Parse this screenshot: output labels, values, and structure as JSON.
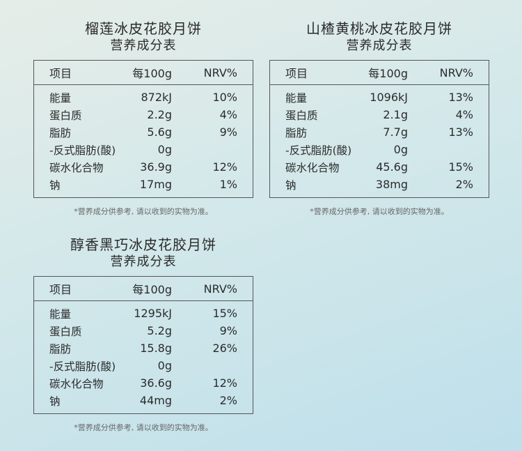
{
  "headers": {
    "item": "项目",
    "per100g": "每100g",
    "nrv": "NRV%"
  },
  "note": "*营养成分供参考, 请以收到的实物为准。",
  "products": [
    {
      "title": "榴莲冰皮花胶月饼",
      "subtitle": "营养成分表",
      "rows": [
        {
          "name": "能量",
          "value": "872kJ",
          "nrv": "10%"
        },
        {
          "name": "蛋白质",
          "value": "2.2g",
          "nrv": "4%"
        },
        {
          "name": "脂肪",
          "value": "5.6g",
          "nrv": "9%"
        },
        {
          "name": "-反式脂肪(酸)",
          "value": "0g",
          "nrv": ""
        },
        {
          "name": "碳水化合物",
          "value": "36.9g",
          "nrv": "12%"
        },
        {
          "name": "钠",
          "value": "17mg",
          "nrv": "1%"
        }
      ]
    },
    {
      "title": "山楂黄桃冰皮花胶月饼",
      "subtitle": "营养成分表",
      "rows": [
        {
          "name": "能量",
          "value": "1096kJ",
          "nrv": "13%"
        },
        {
          "name": "蛋白质",
          "value": "2.1g",
          "nrv": "4%"
        },
        {
          "name": "脂肪",
          "value": "7.7g",
          "nrv": "13%"
        },
        {
          "name": "-反式脂肪(酸)",
          "value": "0g",
          "nrv": ""
        },
        {
          "name": "碳水化合物",
          "value": "45.6g",
          "nrv": "15%"
        },
        {
          "name": "钠",
          "value": "38mg",
          "nrv": "2%"
        }
      ]
    },
    {
      "title": "醇香黑巧冰皮花胶月饼",
      "subtitle": "营养成分表",
      "rows": [
        {
          "name": "能量",
          "value": "1295kJ",
          "nrv": "15%"
        },
        {
          "name": "蛋白质",
          "value": "5.2g",
          "nrv": "9%"
        },
        {
          "name": "脂肪",
          "value": "15.8g",
          "nrv": "26%"
        },
        {
          "name": "-反式脂肪(酸)",
          "value": "0g",
          "nrv": ""
        },
        {
          "name": "碳水化合物",
          "value": "36.6g",
          "nrv": "12%"
        },
        {
          "name": "钠",
          "value": "44mg",
          "nrv": "2%"
        }
      ]
    }
  ]
}
